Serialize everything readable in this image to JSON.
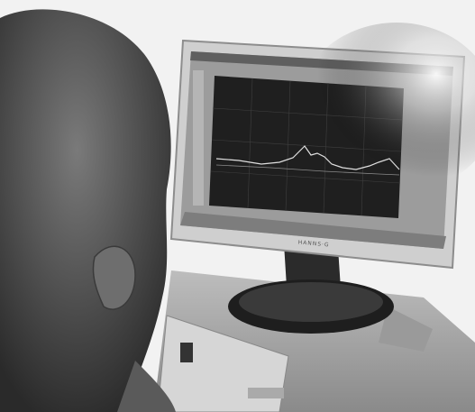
{
  "monitor": {
    "brand": "HANNS·G"
  }
}
